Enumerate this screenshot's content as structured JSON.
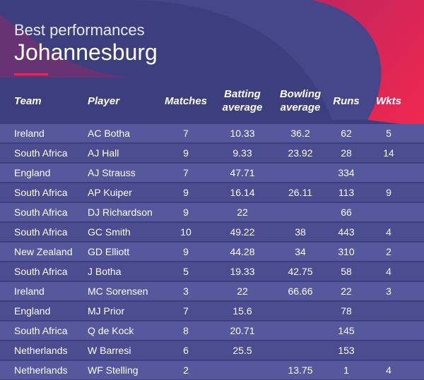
{
  "header": {
    "subtitle": "Best performances",
    "title": "Johannesburg"
  },
  "table": {
    "columns": [
      "Team",
      "Player",
      "Matches",
      "Batting average",
      "Bowling average",
      "Runs",
      "Wkts"
    ],
    "rows": [
      [
        "Ireland",
        "AC Botha",
        "7",
        "10.33",
        "36.2",
        "62",
        "5"
      ],
      [
        "South Africa",
        "AJ Hall",
        "9",
        "9.33",
        "23.92",
        "28",
        "14"
      ],
      [
        "England",
        "AJ Strauss",
        "7",
        "47.71",
        null,
        "334",
        null
      ],
      [
        "South Africa",
        "AP Kuiper",
        "9",
        "16.14",
        "26.11",
        "113",
        "9"
      ],
      [
        "South Africa",
        "DJ Richardson",
        "9",
        "22",
        null,
        "66",
        null
      ],
      [
        "South Africa",
        "GC Smith",
        "10",
        "49.22",
        "38",
        "443",
        "4"
      ],
      [
        "New Zealand",
        "GD Elliott",
        "9",
        "44.28",
        "34",
        "310",
        "2"
      ],
      [
        "South Africa",
        "J Botha",
        "5",
        "19.33",
        "42.75",
        "58",
        "4"
      ],
      [
        "Ireland",
        "MC Sorensen",
        "3",
        "22",
        "66.66",
        "22",
        "3"
      ],
      [
        "England",
        "MJ Prior",
        "7",
        "15.6",
        null,
        "78",
        null
      ],
      [
        "South Africa",
        "Q de Kock",
        "8",
        "20.71",
        null,
        "145",
        null
      ],
      [
        "Netherlands",
        "W Barresi",
        "6",
        "25.5",
        null,
        "153",
        null
      ],
      [
        "Netherlands",
        "WF Stelling",
        "2",
        null,
        "13.75",
        "1",
        "4"
      ]
    ]
  }
}
